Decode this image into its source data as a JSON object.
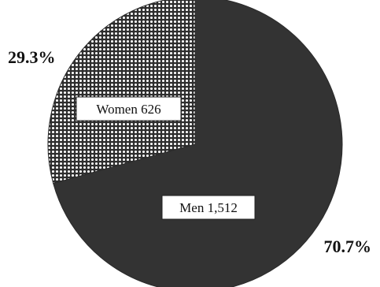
{
  "chart_data": {
    "type": "pie",
    "title": "",
    "slices": [
      {
        "label": "Women",
        "value": 626,
        "value_text": "626",
        "percent_text": "29.3%",
        "color": "#d9d9d9",
        "pattern": "dots"
      },
      {
        "label": "Men",
        "value": 1512,
        "value_text": "1,512",
        "percent_text": "70.7%",
        "color": "#333333",
        "pattern": "solid"
      }
    ],
    "legend": "none",
    "start_angle": "12 o'clock, women slice counter-clockwise"
  }
}
